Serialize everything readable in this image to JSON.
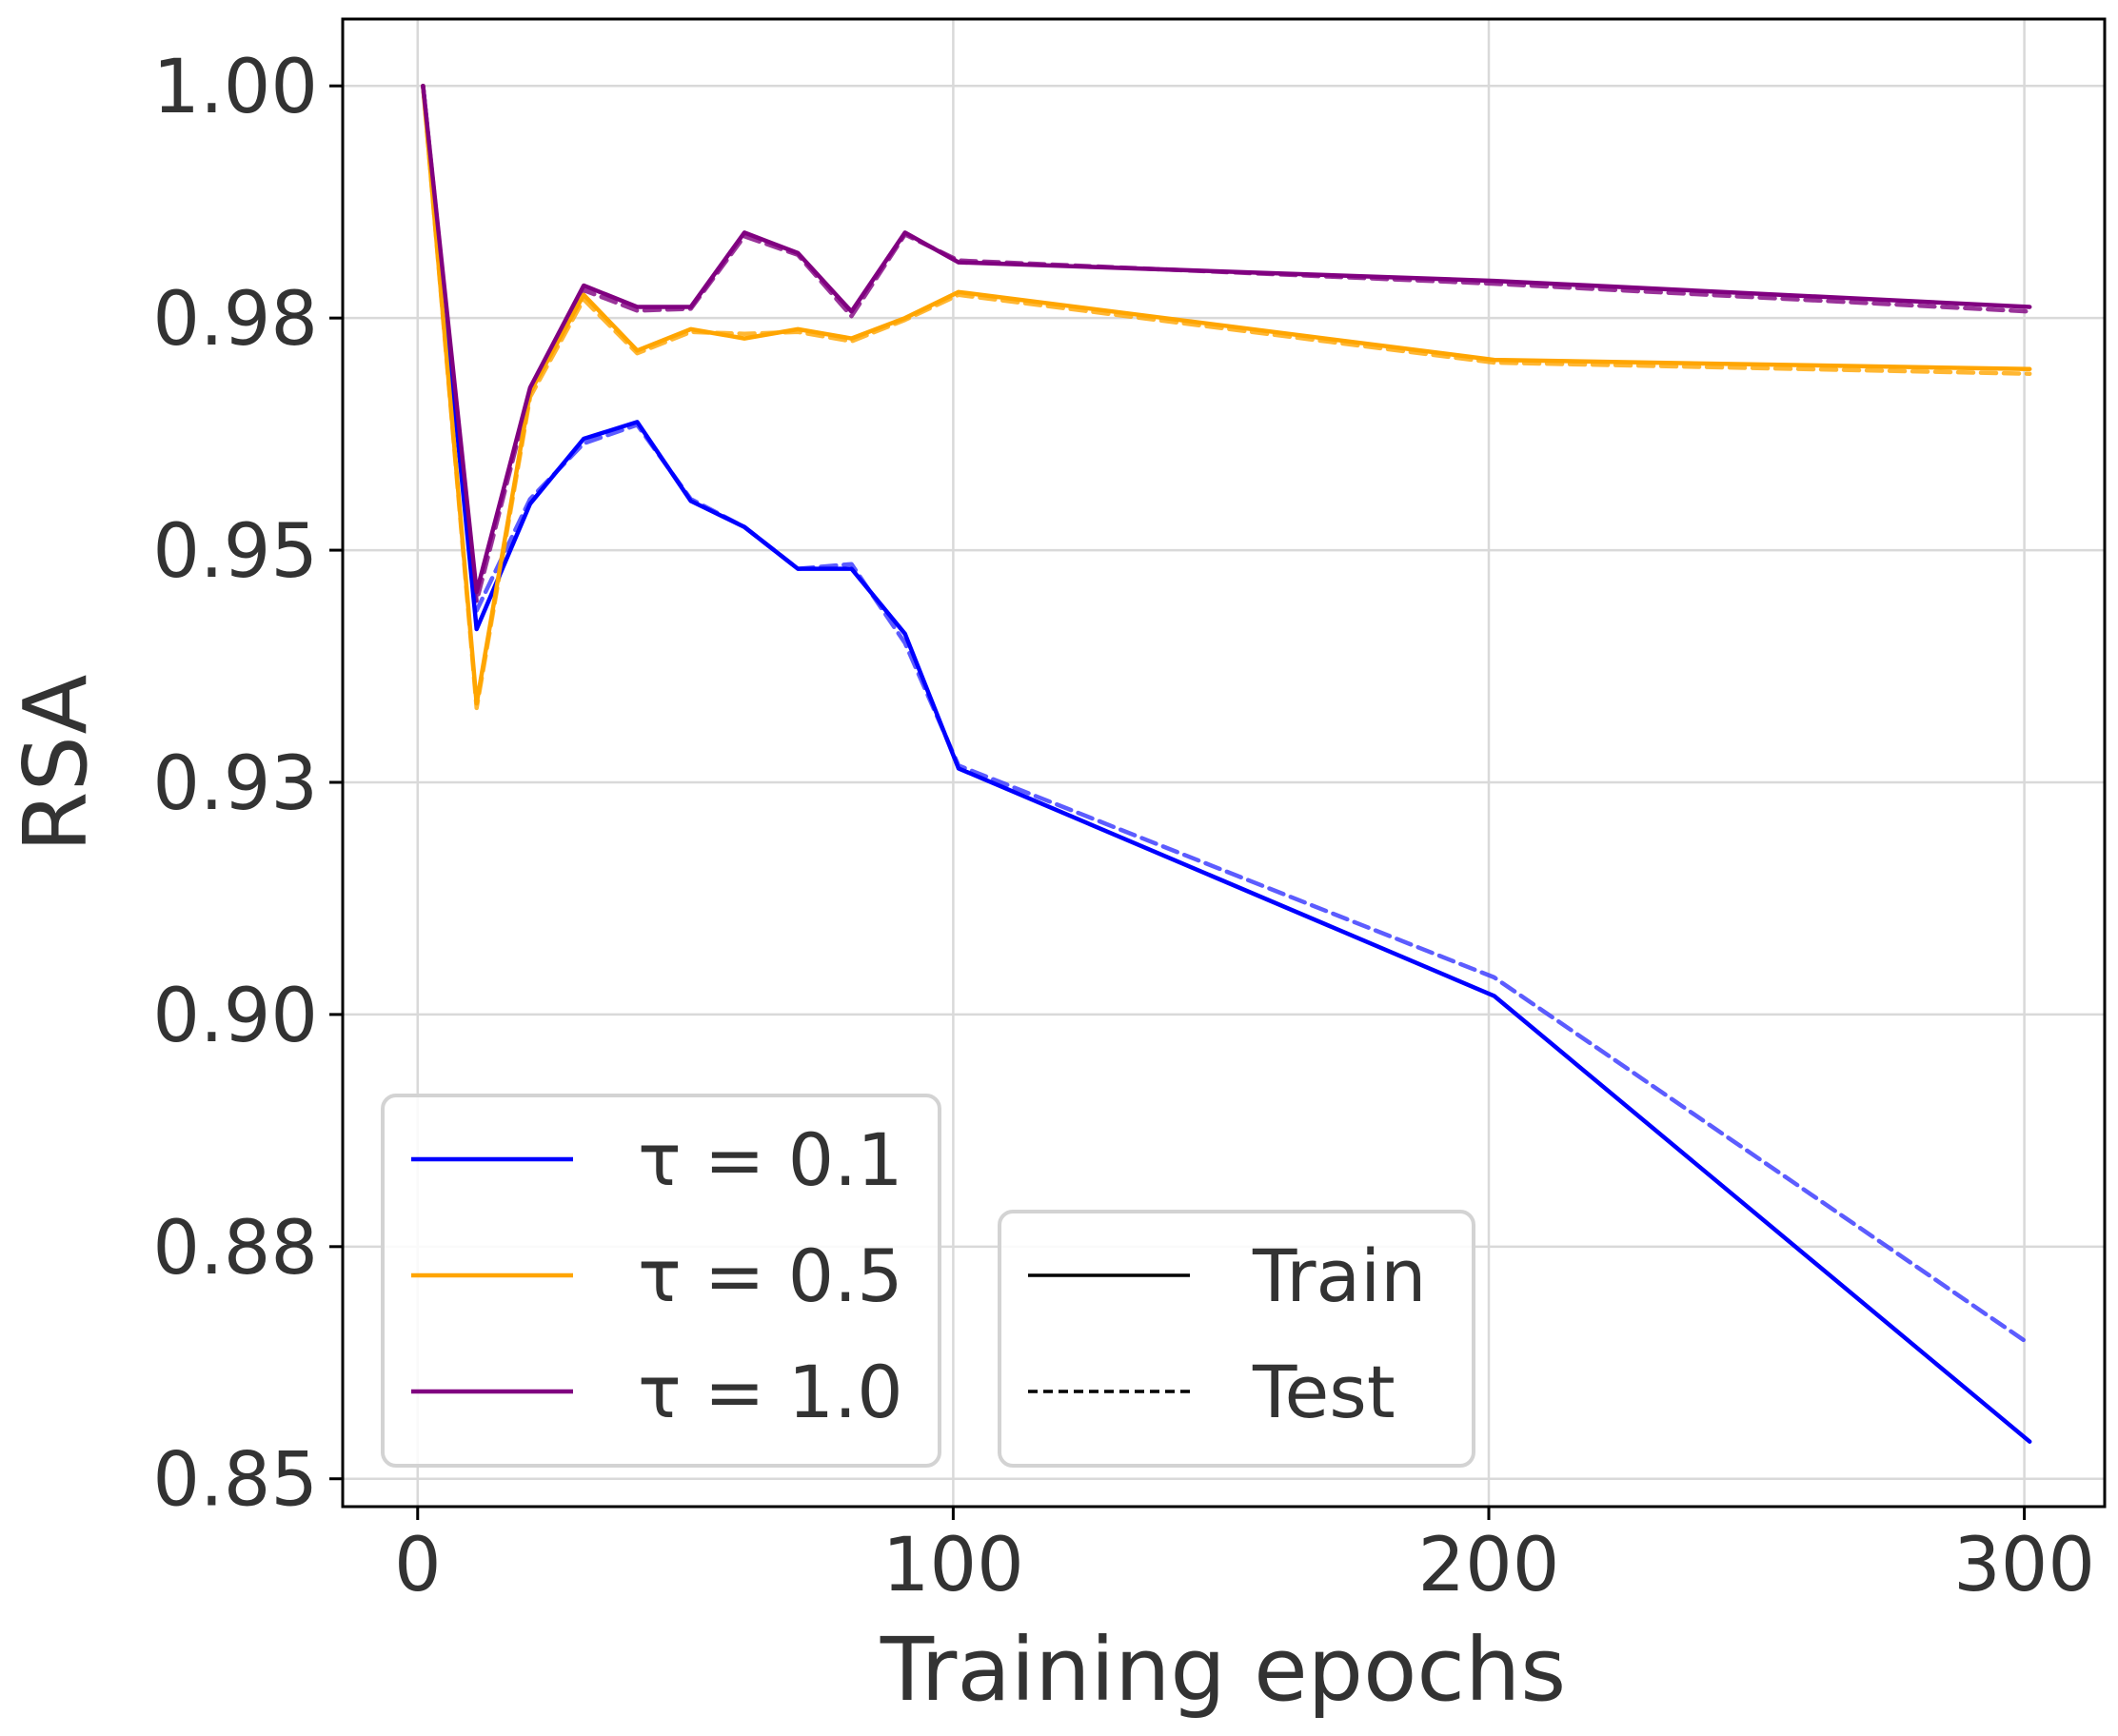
{
  "chart_data": {
    "type": "line",
    "xlabel": "Training epochs",
    "ylabel": "RSA",
    "xlim": [
      -14,
      315
    ],
    "ylim": [
      0.847,
      1.0072
    ],
    "xticks": [
      0,
      100,
      200,
      300
    ],
    "xtick_labels": [
      "0",
      "100",
      "200",
      "300"
    ],
    "yticks": [
      0.85,
      0.875,
      0.9,
      0.925,
      0.95,
      0.975,
      1.0
    ],
    "ytick_labels": [
      "0.85",
      "0.88",
      "0.90",
      "0.93",
      "0.95",
      "0.98",
      "1.00"
    ],
    "grid": true,
    "x": [
      1,
      11,
      21,
      31,
      41,
      51,
      61,
      71,
      81,
      91,
      101,
      201,
      301
    ],
    "series": [
      {
        "name": "τ = 0.1",
        "tau": "0.1",
        "split": "Train",
        "color": "#0000ff",
        "dashed": false,
        "values": [
          1.0,
          0.9415,
          0.955,
          0.962,
          0.9638,
          0.9553,
          0.9525,
          0.948,
          0.948,
          0.941,
          0.9265,
          0.902,
          0.854
        ]
      },
      {
        "name": "τ = 0.1",
        "tau": "0.1",
        "split": "Test",
        "color": "#3333ff",
        "dashed": true,
        "values": [
          1.0,
          0.9435,
          0.9555,
          0.9615,
          0.9635,
          0.9555,
          0.9525,
          0.948,
          0.9485,
          0.94,
          0.9268,
          0.904,
          0.8645
        ]
      },
      {
        "name": "τ = 0.5",
        "tau": "0.5",
        "split": "Train",
        "color": "#ffa500",
        "dashed": false,
        "values": [
          1.0,
          0.9335,
          0.967,
          0.9775,
          0.9715,
          0.9738,
          0.9728,
          0.9738,
          0.9728,
          0.975,
          0.9778,
          0.9705,
          0.9695
        ]
      },
      {
        "name": "τ = 0.5",
        "tau": "0.5",
        "split": "Test",
        "color": "#ffa500",
        "dashed": true,
        "values": [
          1.0,
          0.933,
          0.9665,
          0.977,
          0.9712,
          0.9735,
          0.9733,
          0.9735,
          0.9725,
          0.9748,
          0.9775,
          0.9702,
          0.969
        ]
      },
      {
        "name": "τ = 1.0",
        "tau": "1.0",
        "split": "Train",
        "color": "#800080",
        "dashed": false,
        "values": [
          1.0,
          0.9455,
          0.9675,
          0.9785,
          0.9762,
          0.9762,
          0.9842,
          0.982,
          0.9757,
          0.9842,
          0.981,
          0.979,
          0.9762
        ]
      },
      {
        "name": "τ = 1.0",
        "tau": "1.0",
        "split": "Test",
        "color": "#800080",
        "dashed": true,
        "values": [
          1.0,
          0.9445,
          0.967,
          0.978,
          0.9758,
          0.976,
          0.9838,
          0.9818,
          0.9752,
          0.984,
          0.9812,
          0.9787,
          0.9757
        ]
      }
    ],
    "legend_tau": {
      "placement": "lower-left",
      "entries": [
        {
          "label": "τ = 0.1",
          "color": "#0000ff"
        },
        {
          "label": "τ = 0.5",
          "color": "#ffa500"
        },
        {
          "label": "τ = 1.0",
          "color": "#800080"
        }
      ]
    },
    "legend_split": {
      "placement": "lower-center",
      "entries": [
        {
          "label": "Train",
          "color": "#000000",
          "dashed": false
        },
        {
          "label": "Test",
          "color": "#000000",
          "dashed": true
        }
      ]
    }
  }
}
